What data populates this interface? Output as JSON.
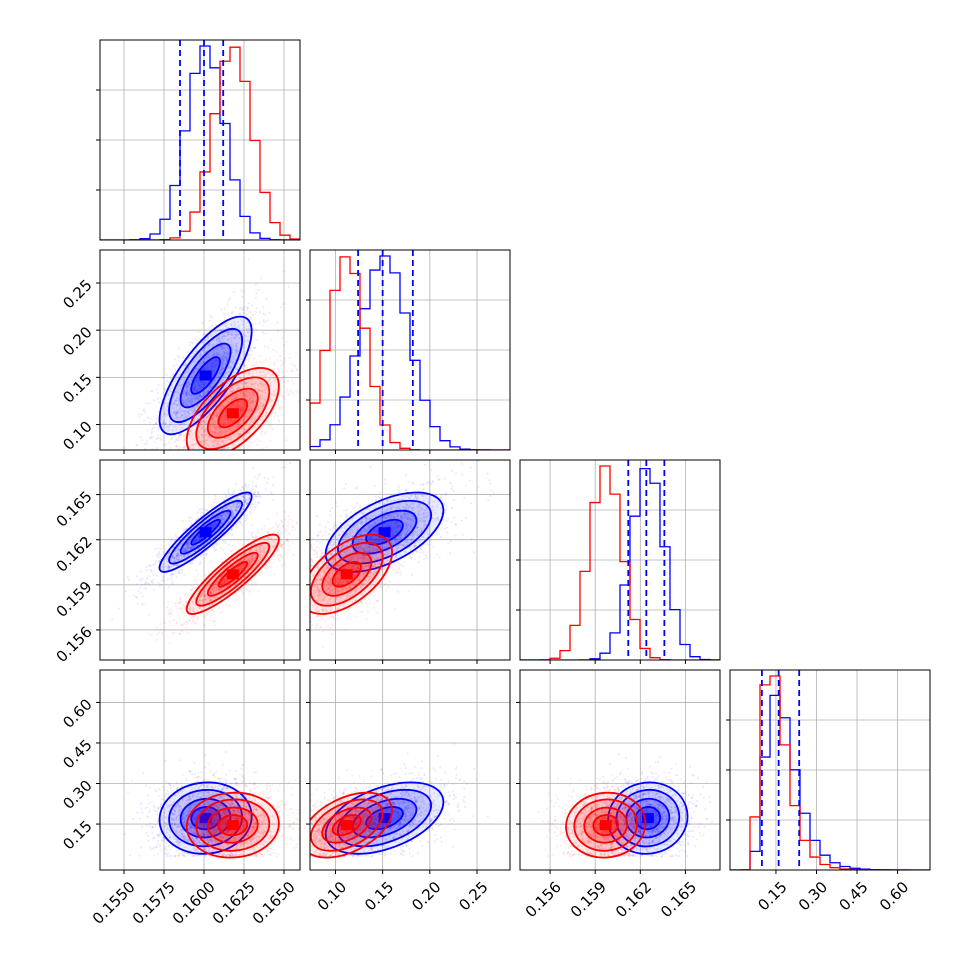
{
  "chart_data": {
    "type": "corner",
    "series": [
      {
        "key": "blue",
        "color": "#0000ff",
        "means": [
          0.1601,
          0.152,
          0.1625,
          0.172
        ],
        "sds": [
          0.0012,
          0.026,
          0.0011,
          0.055
        ],
        "quantiles": [
          [
            0.1585,
            0.16,
            0.1612
          ],
          [
            0.124,
            0.15,
            0.182
          ],
          [
            0.1612,
            0.1624,
            0.1636
          ],
          [
            0.098,
            0.16,
            0.236
          ]
        ]
      },
      {
        "key": "red",
        "color": "#ff0000",
        "means": [
          0.1618,
          0.112,
          0.1597,
          0.146
        ],
        "sds": [
          0.0012,
          0.02,
          0.0011,
          0.05
        ]
      }
    ],
    "correlations": {
      "blue": [
        [
          0,
          1,
          0.75
        ],
        [
          0,
          2,
          0.9
        ],
        [
          1,
          2,
          0.55
        ],
        [
          0,
          3,
          0.05
        ],
        [
          1,
          3,
          0.45
        ],
        [
          2,
          3,
          0.05
        ]
      ],
      "red": [
        [
          0,
          1,
          0.6
        ],
        [
          0,
          2,
          0.88
        ],
        [
          1,
          2,
          0.55
        ],
        [
          0,
          3,
          0.05
        ],
        [
          1,
          3,
          0.45
        ],
        [
          2,
          3,
          0.05
        ]
      ]
    },
    "ranges": [
      [
        0.1535,
        0.166
      ],
      [
        0.073,
        0.285
      ],
      [
        0.154,
        0.1673
      ],
      [
        -0.02,
        0.72
      ]
    ],
    "ticks": [
      [
        "0.1550",
        "0.1575",
        "0.1600",
        "0.1625",
        "0.1650"
      ],
      [
        "0.10",
        "0.15",
        "0.20",
        "0.25"
      ],
      [
        "0.156",
        "0.159",
        "0.162",
        "0.165"
      ],
      [
        "0.15",
        "0.30",
        "0.45",
        "0.60"
      ]
    ],
    "grid": true
  }
}
